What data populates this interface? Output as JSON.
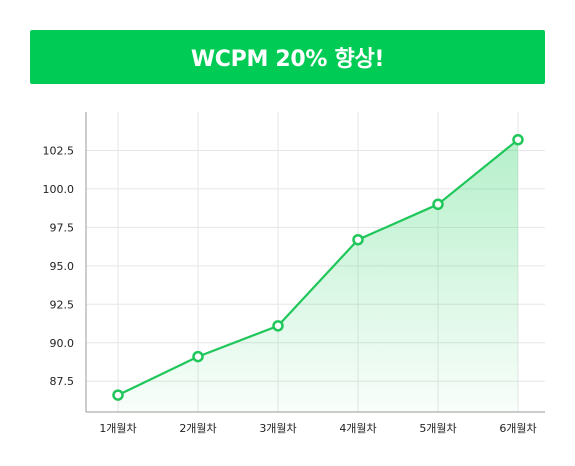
{
  "banner": {
    "title": "WCPM 20% 향상!",
    "color": "#00cc55"
  },
  "chart_data": {
    "type": "line",
    "title": "",
    "xlabel": "",
    "ylabel": "",
    "categories": [
      "1개월차",
      "2개월차",
      "3개월차",
      "4개월차",
      "5개월차",
      "6개월차"
    ],
    "series": [
      {
        "values": [
          86.6,
          89.1,
          91.1,
          96.7,
          99.0,
          103.2
        ]
      }
    ],
    "yticks": [
      "87.5",
      "90.0",
      "92.5",
      "95.0",
      "97.5",
      "100.0",
      "102.5"
    ],
    "ylim": [
      85.5,
      105.0
    ],
    "grid": true,
    "legend": "none",
    "line_color": "#1fc75a",
    "fill_color": "#2ed36a"
  }
}
